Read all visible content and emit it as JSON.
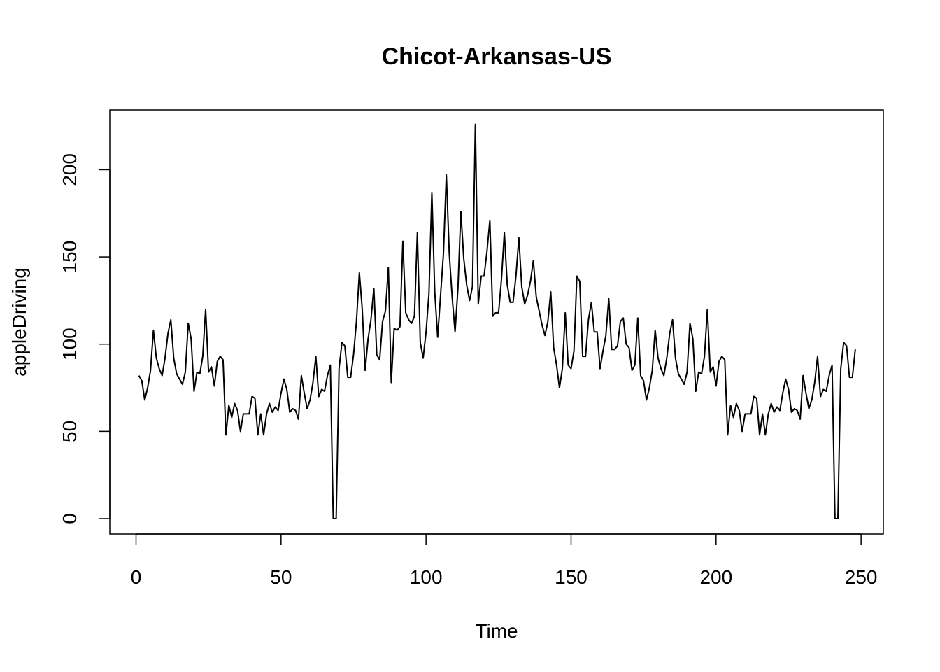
{
  "chart_data": {
    "type": "line",
    "title": "Chicot-Arkansas-US",
    "xlabel": "Time",
    "ylabel": "appleDriving",
    "xlim": [
      1,
      248
    ],
    "ylim": [
      0,
      225
    ],
    "x_ticks": [
      0,
      50,
      100,
      150,
      200,
      250
    ],
    "y_ticks": [
      0,
      50,
      100,
      150,
      200
    ],
    "x_tick_labels": [
      "0",
      "50",
      "100",
      "150",
      "200",
      "250"
    ],
    "y_tick_labels": [
      "0",
      "50",
      "100",
      "150",
      "200"
    ],
    "grid": false,
    "legend": "none",
    "line_color": "#000000",
    "x_start": 1,
    "series": [
      {
        "values": [
          82,
          79,
          68,
          75,
          85,
          108,
          92,
          86,
          82,
          92,
          106,
          114,
          92,
          83,
          80,
          77,
          84,
          112,
          103,
          73,
          84,
          83,
          93,
          120,
          84,
          87,
          76,
          90,
          93,
          91,
          48,
          65,
          58,
          66,
          62,
          50,
          60,
          60,
          60,
          70,
          69,
          48,
          60,
          48,
          60,
          66,
          61,
          64,
          62,
          72,
          80,
          74,
          61,
          63,
          62,
          57,
          82,
          72,
          63,
          68,
          78,
          93,
          70,
          74,
          73,
          82,
          88,
          0,
          0,
          86,
          101,
          99,
          81,
          81,
          94,
          113,
          141,
          120,
          85,
          103,
          114,
          132,
          94,
          91,
          113,
          119,
          144,
          78,
          109,
          108,
          110,
          159,
          118,
          114,
          112,
          116,
          164,
          101,
          92,
          107,
          129,
          187,
          130,
          104,
          128,
          152,
          197,
          152,
          127,
          107,
          132,
          176,
          149,
          134,
          125,
          133,
          226,
          123,
          139,
          139,
          153,
          171,
          116,
          118,
          118,
          137,
          164,
          134,
          124,
          124,
          139,
          161,
          133,
          123,
          128,
          136,
          148,
          127,
          119,
          111,
          105,
          113,
          130,
          98,
          88,
          75,
          86,
          118,
          88,
          86,
          96,
          139,
          136,
          93,
          93,
          114,
          124,
          107,
          107,
          86,
          96,
          105,
          126,
          97,
          97,
          99,
          113,
          115,
          100,
          98,
          85,
          88,
          115,
          82,
          79,
          68,
          75,
          85,
          108,
          92,
          86,
          82,
          92,
          106,
          114,
          92,
          83,
          80,
          77,
          84,
          112,
          103,
          73,
          84,
          83,
          93,
          120,
          84,
          87,
          76,
          90,
          93,
          91,
          48,
          65,
          58,
          66,
          62,
          50,
          60,
          60,
          60,
          70,
          69,
          48,
          60,
          48,
          60,
          66,
          61,
          64,
          62,
          72,
          80,
          74,
          61,
          63,
          62,
          57,
          82,
          72,
          63,
          68,
          78,
          93,
          70,
          74,
          73,
          82,
          88,
          0,
          0,
          86,
          101,
          99,
          81,
          81,
          97
        ]
      }
    ]
  }
}
